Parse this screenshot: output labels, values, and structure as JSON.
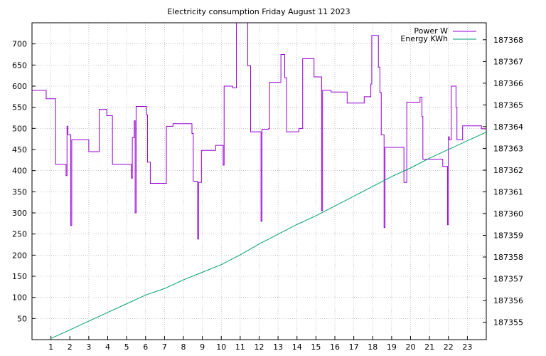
{
  "chart_data": {
    "type": "line",
    "title": "Electricity consumption Friday August 11 2023",
    "xlim": [
      0,
      24
    ],
    "x_ticks": [
      1,
      2,
      3,
      4,
      5,
      6,
      7,
      8,
      9,
      10,
      11,
      12,
      13,
      14,
      15,
      16,
      17,
      18,
      19,
      20,
      21,
      22,
      23
    ],
    "y_left": {
      "ylim": [
        0,
        750
      ],
      "ticks": [
        50,
        100,
        150,
        200,
        250,
        300,
        350,
        400,
        450,
        500,
        550,
        600,
        650,
        700
      ]
    },
    "y_right": {
      "ylim": [
        187354.2,
        187368.78
      ],
      "ticks": [
        187355,
        187356,
        187357,
        187358,
        187359,
        187360,
        187361,
        187362,
        187363,
        187364,
        187365,
        187366,
        187367,
        187368
      ]
    },
    "grid": true,
    "legend_position": "top-right",
    "colors": {
      "power": "#9400d3",
      "energy": "#009e73"
    },
    "series": [
      {
        "name": "Power W",
        "axis": "left",
        "style": "step",
        "points": [
          [
            0,
            590
          ],
          [
            0.75,
            590
          ],
          [
            0.75,
            570
          ],
          [
            1.25,
            570
          ],
          [
            1.25,
            415
          ],
          [
            1.8,
            415
          ],
          [
            1.8,
            388
          ],
          [
            1.85,
            388
          ],
          [
            1.85,
            505
          ],
          [
            1.9,
            505
          ],
          [
            1.9,
            485
          ],
          [
            2.05,
            485
          ],
          [
            2.05,
            270
          ],
          [
            2.1,
            270
          ],
          [
            2.1,
            473
          ],
          [
            3.0,
            473
          ],
          [
            3.0,
            445
          ],
          [
            3.55,
            445
          ],
          [
            3.55,
            545
          ],
          [
            3.95,
            545
          ],
          [
            3.95,
            530
          ],
          [
            4.25,
            530
          ],
          [
            4.25,
            415
          ],
          [
            5.25,
            415
          ],
          [
            5.25,
            382
          ],
          [
            5.3,
            382
          ],
          [
            5.3,
            478
          ],
          [
            5.4,
            478
          ],
          [
            5.4,
            518
          ],
          [
            5.45,
            518
          ],
          [
            5.45,
            300
          ],
          [
            5.5,
            300
          ],
          [
            5.5,
            552
          ],
          [
            6.05,
            552
          ],
          [
            6.05,
            532
          ],
          [
            6.1,
            532
          ],
          [
            6.1,
            420
          ],
          [
            6.25,
            420
          ],
          [
            6.25,
            370
          ],
          [
            7.1,
            370
          ],
          [
            7.1,
            505
          ],
          [
            7.45,
            505
          ],
          [
            7.45,
            511
          ],
          [
            8.45,
            511
          ],
          [
            8.45,
            488
          ],
          [
            8.52,
            488
          ],
          [
            8.52,
            375
          ],
          [
            8.75,
            375
          ],
          [
            8.75,
            238
          ],
          [
            8.8,
            238
          ],
          [
            8.8,
            372
          ],
          [
            8.95,
            372
          ],
          [
            8.95,
            448
          ],
          [
            9.7,
            448
          ],
          [
            9.7,
            460
          ],
          [
            10.1,
            460
          ],
          [
            10.1,
            413
          ],
          [
            10.15,
            413
          ],
          [
            10.15,
            600
          ],
          [
            10.6,
            600
          ],
          [
            10.6,
            596
          ],
          [
            10.8,
            596
          ],
          [
            10.8,
            750
          ],
          [
            11.4,
            750
          ],
          [
            11.4,
            648
          ],
          [
            11.55,
            648
          ],
          [
            11.55,
            492
          ],
          [
            12.1,
            492
          ],
          [
            12.1,
            280
          ],
          [
            12.15,
            280
          ],
          [
            12.15,
            498
          ],
          [
            12.5,
            498
          ],
          [
            12.5,
            500
          ],
          [
            12.55,
            500
          ],
          [
            12.55,
            609
          ],
          [
            13.15,
            609
          ],
          [
            13.15,
            675
          ],
          [
            13.35,
            675
          ],
          [
            13.35,
            620
          ],
          [
            13.45,
            620
          ],
          [
            13.45,
            492
          ],
          [
            14.1,
            492
          ],
          [
            14.1,
            500
          ],
          [
            14.3,
            500
          ],
          [
            14.3,
            665
          ],
          [
            14.9,
            665
          ],
          [
            14.9,
            622
          ],
          [
            15.3,
            622
          ],
          [
            15.3,
            305
          ],
          [
            15.35,
            305
          ],
          [
            15.35,
            590
          ],
          [
            15.8,
            590
          ],
          [
            15.8,
            586
          ],
          [
            16.65,
            586
          ],
          [
            16.65,
            560
          ],
          [
            17.55,
            560
          ],
          [
            17.55,
            575
          ],
          [
            17.9,
            575
          ],
          [
            17.9,
            605
          ],
          [
            17.95,
            605
          ],
          [
            17.95,
            720
          ],
          [
            18.3,
            720
          ],
          [
            18.3,
            645
          ],
          [
            18.38,
            645
          ],
          [
            18.38,
            585
          ],
          [
            18.45,
            585
          ],
          [
            18.45,
            485
          ],
          [
            18.6,
            485
          ],
          [
            18.6,
            265
          ],
          [
            18.65,
            265
          ],
          [
            18.65,
            455
          ],
          [
            19.65,
            455
          ],
          [
            19.65,
            372
          ],
          [
            19.8,
            372
          ],
          [
            19.8,
            562
          ],
          [
            20.5,
            562
          ],
          [
            20.5,
            574
          ],
          [
            20.6,
            574
          ],
          [
            20.6,
            528
          ],
          [
            20.65,
            528
          ],
          [
            20.65,
            427
          ],
          [
            21.7,
            427
          ],
          [
            21.7,
            410
          ],
          [
            21.95,
            410
          ],
          [
            21.95,
            272
          ],
          [
            22.0,
            272
          ],
          [
            22.0,
            480
          ],
          [
            22.05,
            480
          ],
          [
            22.05,
            473
          ],
          [
            22.15,
            473
          ],
          [
            22.15,
            600
          ],
          [
            22.4,
            600
          ],
          [
            22.4,
            550
          ],
          [
            22.45,
            550
          ],
          [
            22.45,
            473
          ],
          [
            22.75,
            473
          ],
          [
            22.75,
            506
          ],
          [
            23.75,
            506
          ],
          [
            23.75,
            499
          ],
          [
            24,
            499
          ]
        ]
      },
      {
        "name": "Energy KWh",
        "axis": "right",
        "style": "line",
        "points": [
          [
            1.0,
            187354.25
          ],
          [
            2.0,
            187354.65
          ],
          [
            3.0,
            187355.05
          ],
          [
            4.0,
            187355.45
          ],
          [
            5.0,
            187355.85
          ],
          [
            6.0,
            187356.25
          ],
          [
            7.0,
            187356.55
          ],
          [
            8.0,
            187356.95
          ],
          [
            9.0,
            187357.3
          ],
          [
            10.0,
            187357.65
          ],
          [
            11.0,
            187358.1
          ],
          [
            12.0,
            187358.6
          ],
          [
            13.0,
            187359.05
          ],
          [
            14.0,
            187359.5
          ],
          [
            15.0,
            187359.9
          ],
          [
            16.0,
            187360.35
          ],
          [
            17.0,
            187360.8
          ],
          [
            18.0,
            187361.25
          ],
          [
            19.0,
            187361.7
          ],
          [
            20.0,
            187362.1
          ],
          [
            21.0,
            187362.55
          ],
          [
            22.0,
            187362.95
          ],
          [
            23.0,
            187363.35
          ],
          [
            24.0,
            187363.75
          ]
        ]
      }
    ]
  }
}
